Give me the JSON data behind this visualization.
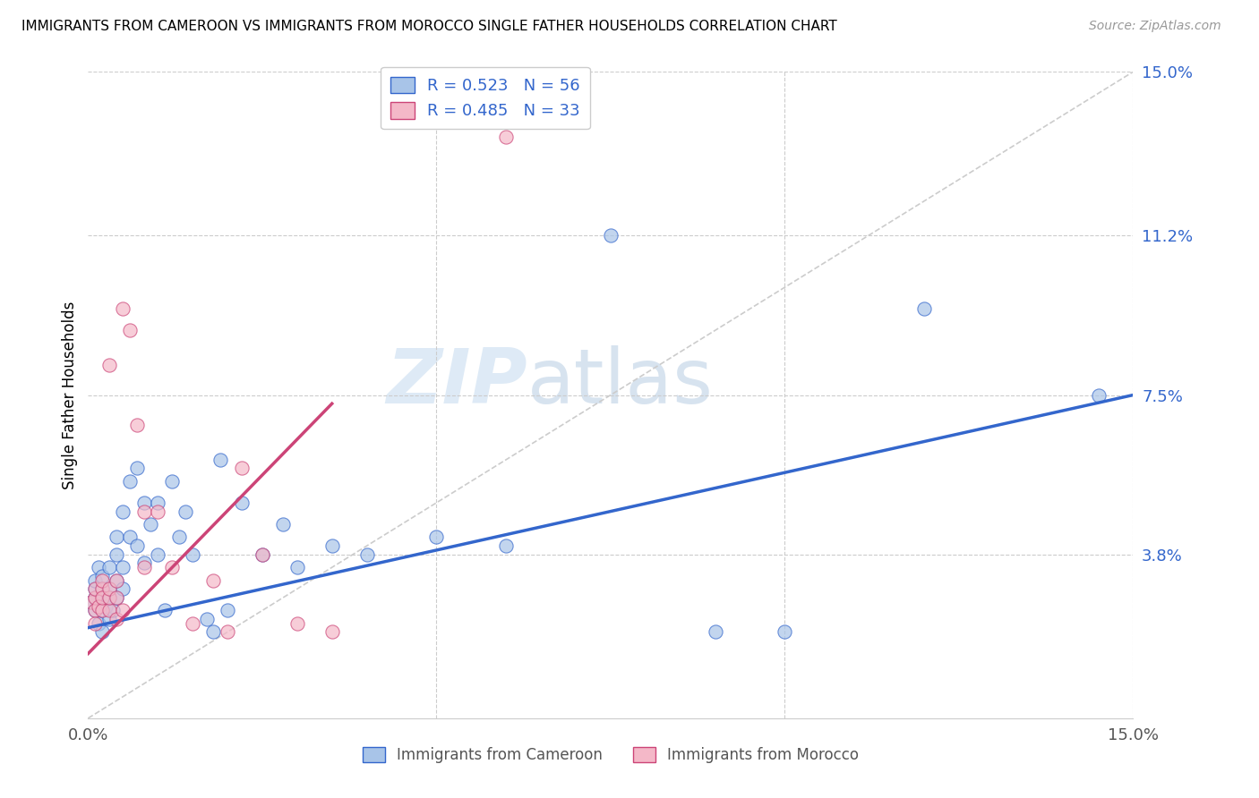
{
  "title": "IMMIGRANTS FROM CAMEROON VS IMMIGRANTS FROM MOROCCO SINGLE FATHER HOUSEHOLDS CORRELATION CHART",
  "source": "Source: ZipAtlas.com",
  "yticks": [
    0.038,
    0.075,
    0.112,
    0.15
  ],
  "xlim": [
    0.0,
    0.15
  ],
  "ylim": [
    0.0,
    0.15
  ],
  "color_cameroon": "#a8c4e8",
  "color_morocco": "#f4b8c8",
  "line_color_cameroon": "#3366cc",
  "line_color_morocco": "#cc4477",
  "watermark_zip": "ZIP",
  "watermark_atlas": "atlas",
  "cameroon_x": [
    0.0005,
    0.001,
    0.001,
    0.001,
    0.001,
    0.0015,
    0.0015,
    0.002,
    0.002,
    0.002,
    0.002,
    0.002,
    0.0025,
    0.003,
    0.003,
    0.003,
    0.003,
    0.0035,
    0.004,
    0.004,
    0.004,
    0.004,
    0.005,
    0.005,
    0.005,
    0.006,
    0.006,
    0.007,
    0.007,
    0.008,
    0.008,
    0.009,
    0.01,
    0.01,
    0.011,
    0.012,
    0.013,
    0.014,
    0.015,
    0.017,
    0.018,
    0.019,
    0.02,
    0.022,
    0.025,
    0.028,
    0.03,
    0.035,
    0.04,
    0.05,
    0.06,
    0.075,
    0.09,
    0.1,
    0.12,
    0.145
  ],
  "cameroon_y": [
    0.027,
    0.028,
    0.03,
    0.025,
    0.032,
    0.022,
    0.035,
    0.025,
    0.028,
    0.02,
    0.03,
    0.033,
    0.026,
    0.023,
    0.028,
    0.035,
    0.03,
    0.025,
    0.028,
    0.032,
    0.038,
    0.042,
    0.03,
    0.035,
    0.048,
    0.042,
    0.055,
    0.04,
    0.058,
    0.036,
    0.05,
    0.045,
    0.038,
    0.05,
    0.025,
    0.055,
    0.042,
    0.048,
    0.038,
    0.023,
    0.02,
    0.06,
    0.025,
    0.05,
    0.038,
    0.045,
    0.035,
    0.04,
    0.038,
    0.042,
    0.04,
    0.112,
    0.02,
    0.02,
    0.095,
    0.075
  ],
  "morocco_x": [
    0.0005,
    0.001,
    0.001,
    0.001,
    0.001,
    0.0015,
    0.002,
    0.002,
    0.002,
    0.002,
    0.003,
    0.003,
    0.003,
    0.003,
    0.004,
    0.004,
    0.004,
    0.005,
    0.005,
    0.006,
    0.007,
    0.008,
    0.008,
    0.01,
    0.012,
    0.015,
    0.018,
    0.02,
    0.022,
    0.025,
    0.03,
    0.035,
    0.06
  ],
  "morocco_y": [
    0.027,
    0.025,
    0.028,
    0.022,
    0.03,
    0.026,
    0.025,
    0.03,
    0.032,
    0.028,
    0.025,
    0.028,
    0.082,
    0.03,
    0.023,
    0.028,
    0.032,
    0.025,
    0.095,
    0.09,
    0.068,
    0.048,
    0.035,
    0.048,
    0.035,
    0.022,
    0.032,
    0.02,
    0.058,
    0.038,
    0.022,
    0.02,
    0.135
  ],
  "cam_line_x0": 0.0,
  "cam_line_y0": 0.021,
  "cam_line_x1": 0.15,
  "cam_line_y1": 0.075,
  "mor_line_x0": 0.0,
  "mor_line_y0": 0.015,
  "mor_line_x1": 0.035,
  "mor_line_y1": 0.073
}
